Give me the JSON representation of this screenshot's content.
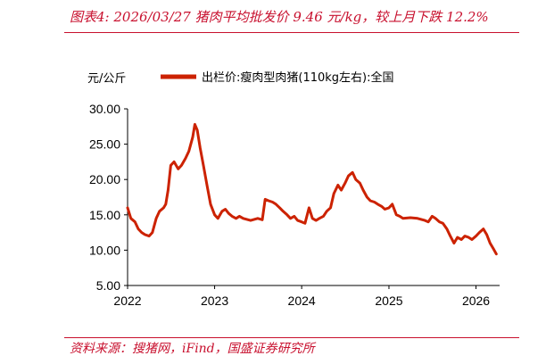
{
  "header": {
    "title": "图表4:  2026/03/27 猪肉平均批发价 9.46 元/kg，较上月下跌 12.2%"
  },
  "footer": {
    "source": "资料来源：搜猪网，iFind，国盛证券研究所"
  },
  "chart_data": {
    "type": "line",
    "title": "",
    "xlabel": "",
    "ylabel": "元/公斤",
    "ylim": [
      5,
      30
    ],
    "yticks": [
      "5.00",
      "10.00",
      "15.00",
      "20.00",
      "25.00",
      "30.00"
    ],
    "xticks": [
      "2022",
      "2023",
      "2024",
      "2025",
      "2026"
    ],
    "legend_position": "top",
    "grid": false,
    "colors": {
      "series": "#cc2200",
      "accent": "#c8102e"
    },
    "series": [
      {
        "name": "出栏价:瘦肉型肉猪(110kg左右):全国",
        "x": [
          "2022-01-01",
          "2022-01-15",
          "2022-02-01",
          "2022-02-15",
          "2022-03-01",
          "2022-03-15",
          "2022-04-01",
          "2022-04-15",
          "2022-05-01",
          "2022-05-15",
          "2022-06-01",
          "2022-06-10",
          "2022-06-20",
          "2022-07-01",
          "2022-07-15",
          "2022-08-01",
          "2022-08-15",
          "2022-09-01",
          "2022-09-15",
          "2022-10-01",
          "2022-10-10",
          "2022-10-20",
          "2022-11-01",
          "2022-11-15",
          "2022-12-01",
          "2022-12-15",
          "2023-01-01",
          "2023-01-15",
          "2023-02-01",
          "2023-02-15",
          "2023-03-01",
          "2023-03-15",
          "2023-04-01",
          "2023-04-15",
          "2023-05-01",
          "2023-06-01",
          "2023-07-01",
          "2023-07-20",
          "2023-08-01",
          "2023-08-15",
          "2023-09-01",
          "2023-09-15",
          "2023-10-01",
          "2023-10-15",
          "2023-11-01",
          "2023-11-15",
          "2023-12-01",
          "2023-12-15",
          "2024-01-01",
          "2024-01-15",
          "2024-02-01",
          "2024-02-15",
          "2024-03-01",
          "2024-03-15",
          "2024-04-01",
          "2024-04-15",
          "2024-05-01",
          "2024-05-15",
          "2024-06-01",
          "2024-06-15",
          "2024-07-01",
          "2024-07-15",
          "2024-08-01",
          "2024-08-15",
          "2024-09-01",
          "2024-09-15",
          "2024-10-01",
          "2024-10-15",
          "2024-11-01",
          "2024-11-15",
          "2024-12-01",
          "2024-12-15",
          "2025-01-01",
          "2025-01-15",
          "2025-02-01",
          "2025-02-15",
          "2025-03-01",
          "2025-04-01",
          "2025-05-01",
          "2025-06-01",
          "2025-06-15",
          "2025-07-01",
          "2025-07-15",
          "2025-08-01",
          "2025-08-15",
          "2025-09-01",
          "2025-09-15",
          "2025-10-01",
          "2025-10-15",
          "2025-11-01",
          "2025-11-15",
          "2025-12-01",
          "2025-12-15",
          "2026-01-01",
          "2026-01-15",
          "2026-02-01",
          "2026-02-15",
          "2026-03-01",
          "2026-03-15",
          "2026-03-27"
        ],
        "values": [
          16.0,
          14.5,
          14.0,
          13.0,
          12.5,
          12.2,
          12.0,
          12.5,
          14.5,
          15.5,
          16.0,
          16.5,
          18.5,
          22.0,
          22.5,
          21.5,
          22.0,
          23.0,
          24.0,
          26.0,
          27.8,
          27.0,
          24.5,
          22.0,
          19.0,
          16.5,
          15.0,
          14.5,
          15.5,
          15.8,
          15.2,
          14.8,
          14.5,
          14.8,
          14.5,
          14.2,
          14.5,
          14.3,
          17.2,
          17.0,
          16.8,
          16.5,
          16.0,
          15.5,
          15.0,
          14.5,
          14.8,
          14.2,
          14.0,
          13.8,
          16.0,
          14.5,
          14.2,
          14.5,
          14.8,
          15.5,
          16.0,
          18.0,
          19.2,
          18.5,
          19.5,
          20.5,
          21.0,
          20.0,
          19.5,
          18.5,
          17.5,
          17.0,
          16.8,
          16.5,
          16.2,
          15.8,
          16.0,
          16.5,
          15.0,
          14.8,
          14.5,
          14.6,
          14.5,
          14.2,
          14.0,
          14.8,
          14.5,
          14.0,
          13.8,
          13.0,
          12.0,
          11.0,
          11.8,
          11.5,
          12.0,
          11.8,
          11.5,
          12.0,
          12.5,
          13.0,
          12.2,
          11.0,
          10.2,
          9.46
        ]
      }
    ]
  }
}
